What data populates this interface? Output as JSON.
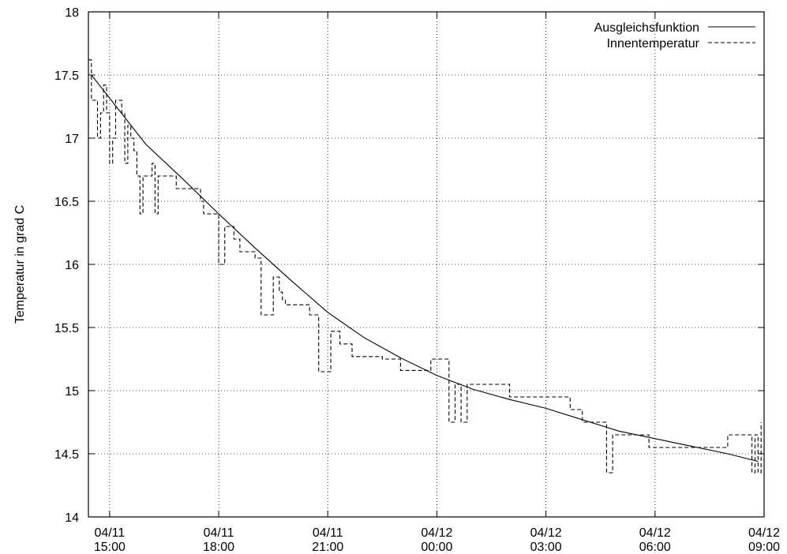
{
  "chart_data": {
    "type": "line",
    "title": "",
    "xlabel": "",
    "ylabel": "Temperatur in grad C",
    "ylim": [
      14,
      18
    ],
    "xlim": [
      "2010-04-11 14:25",
      "2010-04-12 09:00"
    ],
    "y_ticks": [
      14,
      14.5,
      15,
      15.5,
      16,
      16.5,
      17,
      17.5,
      18
    ],
    "y_tick_labels": [
      "14",
      "14.5",
      "15",
      "15.5",
      "16",
      "16.5",
      "17",
      "17.5",
      "18"
    ],
    "x_ticks": [
      "2010-04-11 15:00",
      "2010-04-11 18:00",
      "2010-04-11 21:00",
      "2010-04-12 00:00",
      "2010-04-12 03:00",
      "2010-04-12 06:00",
      "2010-04-12 09:00"
    ],
    "x_tick_labels": [
      [
        "04/11",
        "15:00"
      ],
      [
        "04/11",
        "18:00"
      ],
      [
        "04/11",
        "21:00"
      ],
      [
        "04/12",
        "00:00"
      ],
      [
        "04/12",
        "03:00"
      ],
      [
        "04/12",
        "06:00"
      ],
      [
        "04/12",
        "09:00"
      ]
    ],
    "grid": true,
    "legend_position": "top-right",
    "series": [
      {
        "name": "Ausgleichsfunktion",
        "style": "solid",
        "color": "#000000",
        "x": [
          "2010-04-11 14:30",
          "2010-04-11 16:00",
          "2010-04-11 17:00",
          "2010-04-11 18:00",
          "2010-04-11 19:00",
          "2010-04-11 20:00",
          "2010-04-11 21:00",
          "2010-04-11 22:00",
          "2010-04-11 23:00",
          "2010-04-12 00:00",
          "2010-04-12 01:00",
          "2010-04-12 02:00",
          "2010-04-12 03:00",
          "2010-04-12 04:00",
          "2010-04-12 05:00",
          "2010-04-12 06:00",
          "2010-04-12 07:00",
          "2010-04-12 08:00",
          "2010-04-12 08:50"
        ],
        "y": [
          17.5,
          16.95,
          16.68,
          16.4,
          16.13,
          15.87,
          15.62,
          15.42,
          15.26,
          15.12,
          15.01,
          14.93,
          14.86,
          14.77,
          14.68,
          14.62,
          14.56,
          14.5,
          14.44
        ]
      },
      {
        "name": "Innentemperatur",
        "style": "dashed",
        "color": "#000000",
        "x": [
          "2010-04-11 14:25",
          "2010-04-11 14:30",
          "2010-04-11 14:40",
          "2010-04-11 14:45",
          "2010-04-11 14:50",
          "2010-04-11 14:55",
          "2010-04-11 15:00",
          "2010-04-11 15:05",
          "2010-04-11 15:10",
          "2010-04-11 15:15",
          "2010-04-11 15:20",
          "2010-04-11 15:25",
          "2010-04-11 15:30",
          "2010-04-11 15:35",
          "2010-04-11 15:40",
          "2010-04-11 15:45",
          "2010-04-11 15:50",
          "2010-04-11 15:55",
          "2010-04-11 16:00",
          "2010-04-11 16:10",
          "2010-04-11 16:15",
          "2010-04-11 16:20",
          "2010-04-11 16:25",
          "2010-04-11 16:30",
          "2010-04-11 16:40",
          "2010-04-11 16:45",
          "2010-04-11 16:50",
          "2010-04-11 16:55",
          "2010-04-11 17:00",
          "2010-04-11 17:30",
          "2010-04-11 17:35",
          "2010-04-11 18:00",
          "2010-04-11 18:10",
          "2010-04-11 18:15",
          "2010-04-11 18:20",
          "2010-04-11 18:25",
          "2010-04-11 18:35",
          "2010-04-11 19:00",
          "2010-04-11 19:10",
          "2010-04-11 19:30",
          "2010-04-11 19:40",
          "2010-04-11 19:45",
          "2010-04-11 19:50",
          "2010-04-11 20:00",
          "2010-04-11 20:30",
          "2010-04-11 20:45",
          "2010-04-11 21:05",
          "2010-04-11 21:15",
          "2010-04-11 21:20",
          "2010-04-11 21:40",
          "2010-04-11 22:00",
          "2010-04-11 22:30",
          "2010-04-11 23:00",
          "2010-04-11 23:50",
          "2010-04-12 00:20",
          "2010-04-12 00:30",
          "2010-04-12 00:40",
          "2010-04-12 00:50",
          "2010-04-12 01:00",
          "2010-04-12 02:00",
          "2010-04-12 02:50",
          "2010-04-12 03:40",
          "2010-04-12 03:50",
          "2010-04-12 04:00",
          "2010-04-12 04:20",
          "2010-04-12 04:40",
          "2010-04-12 04:50",
          "2010-04-12 05:00",
          "2010-04-12 05:20",
          "2010-04-12 05:50",
          "2010-04-12 06:00",
          "2010-04-12 06:30",
          "2010-04-12 07:00",
          "2010-04-12 07:30",
          "2010-04-12 08:00",
          "2010-04-12 08:30",
          "2010-04-12 08:40",
          "2010-04-12 08:45",
          "2010-04-12 08:50",
          "2010-04-12 08:55"
        ],
        "y": [
          17.62,
          17.3,
          17.0,
          17.2,
          17.42,
          17.2,
          16.8,
          17.0,
          17.3,
          17.3,
          17.2,
          16.8,
          17.1,
          17.0,
          16.9,
          16.7,
          16.4,
          16.7,
          16.7,
          16.8,
          16.4,
          16.7,
          16.7,
          16.7,
          16.7,
          16.7,
          16.6,
          16.6,
          16.6,
          16.5,
          16.4,
          16.0,
          16.3,
          16.3,
          16.3,
          16.2,
          16.1,
          16.05,
          15.6,
          15.9,
          15.78,
          15.72,
          15.68,
          15.68,
          15.6,
          15.15,
          15.47,
          15.47,
          15.37,
          15.27,
          15.27,
          15.25,
          15.16,
          15.25,
          14.75,
          15.05,
          14.75,
          15.05,
          15.05,
          14.95,
          14.95,
          14.85,
          14.85,
          14.75,
          14.75,
          14.35,
          14.65,
          14.65,
          14.65,
          14.55,
          14.55,
          14.55,
          14.55,
          14.55,
          14.65,
          14.65,
          14.35,
          14.65,
          14.35,
          14.75
        ]
      }
    ]
  }
}
